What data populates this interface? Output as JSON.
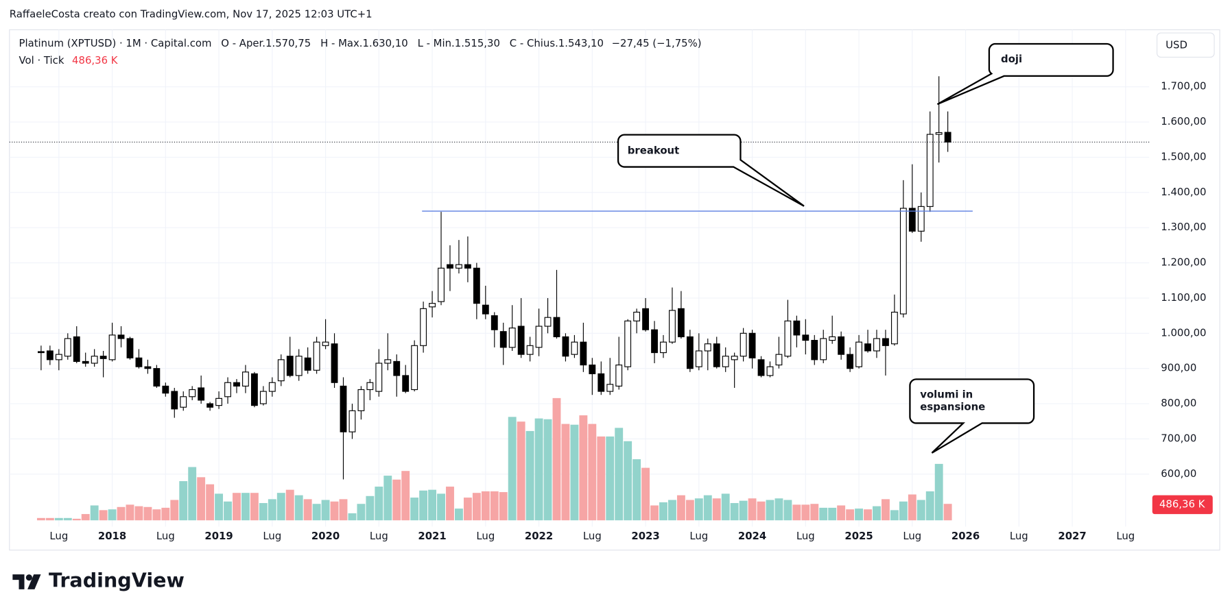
{
  "header": "RaffaeleCosta creato con TradingView.com, Nov 17, 2025 12:03 UTC+1",
  "legend": {
    "symbol": "Platinum (XPTUSD) · 1M · Capital.com",
    "open": "O - Aper.1.570,75",
    "high": "H - Max.1.630,10",
    "low": "L - Min.1.515,30",
    "close": "C - Chius.1.543,10",
    "change": "−27,45 (−1,75%)",
    "volume_name": "Vol · Tick",
    "volume_value": "486,36 K"
  },
  "currency": "USD",
  "footer": "TradingView",
  "chart_data": {
    "type": "candlestick",
    "x": [
      "2017-05",
      "2017-06",
      "2017-07",
      "2017-08",
      "2017-09",
      "2017-10",
      "2017-11",
      "2017-12",
      "2018-01",
      "2018-02",
      "2018-03",
      "2018-04",
      "2018-05",
      "2018-06",
      "2018-07",
      "2018-08",
      "2018-09",
      "2018-10",
      "2018-11",
      "2018-12",
      "2019-01",
      "2019-02",
      "2019-03",
      "2019-04",
      "2019-05",
      "2019-06",
      "2019-07",
      "2019-08",
      "2019-09",
      "2019-10",
      "2019-11",
      "2019-12",
      "2020-01",
      "2020-02",
      "2020-03",
      "2020-04",
      "2020-05",
      "2020-06",
      "2020-07",
      "2020-08",
      "2020-09",
      "2020-10",
      "2020-11",
      "2020-12",
      "2021-01",
      "2021-02",
      "2021-03",
      "2021-04",
      "2021-05",
      "2021-06",
      "2021-07",
      "2021-08",
      "2021-09",
      "2021-10",
      "2021-11",
      "2021-12",
      "2022-01",
      "2022-02",
      "2022-03",
      "2022-04",
      "2022-05",
      "2022-06",
      "2022-07",
      "2022-08",
      "2022-09",
      "2022-10",
      "2022-11",
      "2022-12",
      "2023-01",
      "2023-02",
      "2023-03",
      "2023-04",
      "2023-05",
      "2023-06",
      "2023-07",
      "2023-08",
      "2023-09",
      "2023-10",
      "2023-11",
      "2023-12",
      "2024-01",
      "2024-02",
      "2024-03",
      "2024-04",
      "2024-05",
      "2024-06",
      "2024-07",
      "2024-08",
      "2024-09",
      "2024-10",
      "2024-11",
      "2024-12",
      "2025-01",
      "2025-02",
      "2025-03",
      "2025-04",
      "2025-05",
      "2025-06",
      "2025-07",
      "2025-08",
      "2025-09",
      "2025-10",
      "2025-11"
    ],
    "open": [
      948,
      950,
      925,
      935,
      990,
      920,
      915,
      935,
      925,
      995,
      985,
      930,
      905,
      900,
      850,
      835,
      790,
      820,
      845,
      800,
      795,
      820,
      860,
      850,
      885,
      800,
      835,
      865,
      935,
      880,
      930,
      895,
      965,
      970,
      850,
      720,
      780,
      840,
      835,
      915,
      920,
      880,
      840,
      965,
      1075,
      1090,
      1195,
      1185,
      1195,
      1185,
      1080,
      1050,
      1005,
      960,
      1020,
      940,
      960,
      1020,
      1045,
      990,
      940,
      975,
      910,
      885,
      835,
      850,
      905,
      1035,
      1070,
      1010,
      945,
      975,
      1070,
      990,
      905,
      950,
      970,
      905,
      925,
      935,
      1000,
      925,
      880,
      910,
      935,
      1035,
      995,
      980,
      925,
      980,
      990,
      940,
      905,
      970,
      950,
      985,
      970,
      1055,
      1355,
      1290,
      1360,
      1565,
      1570.75
    ],
    "high": [
      965,
      965,
      955,
      1000,
      1020,
      945,
      955,
      950,
      1030,
      1020,
      990,
      955,
      925,
      910,
      860,
      845,
      835,
      850,
      880,
      805,
      835,
      875,
      870,
      910,
      890,
      850,
      875,
      940,
      990,
      955,
      960,
      990,
      1040,
      1000,
      875,
      800,
      850,
      870,
      955,
      1000,
      940,
      910,
      980,
      1090,
      1120,
      1345,
      1250,
      1265,
      1275,
      1200,
      1135,
      1060,
      1030,
      1080,
      1100,
      990,
      1070,
      1100,
      1180,
      1000,
      995,
      1030,
      930,
      920,
      930,
      990,
      1040,
      1070,
      1100,
      1035,
      995,
      1130,
      1120,
      1010,
      1000,
      985,
      990,
      960,
      945,
      1015,
      1010,
      935,
      920,
      990,
      1095,
      1050,
      1040,
      995,
      1010,
      1050,
      1005,
      960,
      995,
      1010,
      1010,
      1010,
      1110,
      1435,
      1480,
      1400,
      1630,
      1730,
      1630.1
    ],
    "low": [
      895,
      910,
      895,
      925,
      915,
      905,
      905,
      875,
      920,
      960,
      925,
      900,
      885,
      845,
      820,
      760,
      780,
      810,
      800,
      780,
      785,
      800,
      830,
      830,
      790,
      795,
      820,
      850,
      875,
      865,
      885,
      885,
      955,
      845,
      585,
      700,
      755,
      810,
      820,
      895,
      820,
      830,
      835,
      945,
      1045,
      1080,
      1120,
      1170,
      1145,
      1040,
      1040,
      960,
      910,
      950,
      930,
      920,
      935,
      1000,
      985,
      920,
      930,
      890,
      825,
      825,
      825,
      840,
      895,
      1000,
      1005,
      915,
      930,
      970,
      985,
      890,
      895,
      895,
      900,
      890,
      845,
      920,
      900,
      875,
      875,
      900,
      930,
      960,
      940,
      910,
      915,
      970,
      925,
      890,
      900,
      945,
      930,
      880,
      965,
      1045,
      1285,
      1260,
      1345,
      1485,
      1515.3
    ],
    "close": [
      945,
      925,
      940,
      985,
      920,
      915,
      935,
      928,
      995,
      985,
      930,
      905,
      900,
      850,
      830,
      785,
      820,
      840,
      810,
      790,
      815,
      860,
      850,
      890,
      795,
      835,
      860,
      925,
      880,
      935,
      895,
      975,
      975,
      860,
      720,
      780,
      840,
      860,
      915,
      925,
      880,
      835,
      965,
      1070,
      1085,
      1185,
      1185,
      1195,
      1185,
      1085,
      1055,
      1010,
      960,
      1015,
      940,
      965,
      1020,
      1045,
      990,
      935,
      975,
      910,
      885,
      835,
      855,
      910,
      1035,
      1060,
      1010,
      945,
      975,
      1065,
      990,
      900,
      950,
      970,
      905,
      935,
      935,
      1000,
      930,
      880,
      905,
      940,
      1035,
      995,
      980,
      925,
      985,
      990,
      940,
      900,
      975,
      950,
      985,
      965,
      1060,
      1355,
      1290,
      1360,
      1565,
      1570,
      1543.1
    ],
    "volume": [
      69,
      69,
      69,
      69,
      46,
      185,
      440,
      301,
      324,
      394,
      463,
      417,
      394,
      324,
      371,
      602,
      1158,
      1575,
      1274,
      1065,
      787,
      556,
      811,
      811,
      811,
      510,
      625,
      811,
      903,
      741,
      625,
      486,
      602,
      556,
      625,
      208,
      486,
      718,
      996,
      1320,
      1204,
      1459,
      672,
      880,
      903,
      787,
      996,
      347,
      672,
      811,
      857,
      857,
      834,
      3057,
      2918,
      2640,
      3011,
      2988,
      3613,
      2849,
      2826,
      3103,
      2849,
      2478,
      2478,
      2733,
      2339,
      1806,
      1552,
      440,
      533,
      602,
      741,
      602,
      648,
      741,
      648,
      787,
      510,
      579,
      648,
      556,
      602,
      648,
      602,
      463,
      463,
      486,
      371,
      371,
      440,
      324,
      347,
      324,
      417,
      625,
      301,
      556,
      764,
      602,
      857,
      1668,
      486.36
    ],
    "vlim": [
      0,
      4000
    ],
    "ylim": [
      451,
      1862
    ],
    "yticks": [
      {
        "value": 600,
        "label": "600,00"
      },
      {
        "value": 700,
        "label": "700,00"
      },
      {
        "value": 800,
        "label": "800,00"
      },
      {
        "value": 900,
        "label": "900,00"
      },
      {
        "value": 1000,
        "label": "1.000,00"
      },
      {
        "value": 1100,
        "label": "1.100,00"
      },
      {
        "value": 1200,
        "label": "1.200,00"
      },
      {
        "value": 1300,
        "label": "1.300,00"
      },
      {
        "value": 1400,
        "label": "1.400,00"
      },
      {
        "value": 1500,
        "label": "1.500,00"
      },
      {
        "value": 1600,
        "label": "1.600,00"
      },
      {
        "value": 1700,
        "label": "1.700,00"
      }
    ],
    "xticks": [
      {
        "value": "2017-07",
        "label": "Lug"
      },
      {
        "value": "2018-01",
        "label": "2018"
      },
      {
        "value": "2018-07",
        "label": "Lug"
      },
      {
        "value": "2019-01",
        "label": "2019"
      },
      {
        "value": "2019-07",
        "label": "Lug"
      },
      {
        "value": "2020-01",
        "label": "2020"
      },
      {
        "value": "2020-07",
        "label": "Lug"
      },
      {
        "value": "2021-01",
        "label": "2021"
      },
      {
        "value": "2021-07",
        "label": "Lug"
      },
      {
        "value": "2022-01",
        "label": "2022"
      },
      {
        "value": "2022-07",
        "label": "Lug"
      },
      {
        "value": "2023-01",
        "label": "2023"
      },
      {
        "value": "2023-07",
        "label": "Lug"
      },
      {
        "value": "2024-01",
        "label": "2024"
      },
      {
        "value": "2024-07",
        "label": "Lug"
      },
      {
        "value": "2025-01",
        "label": "2025"
      },
      {
        "value": "2025-07",
        "label": "Lug"
      },
      {
        "value": "2026-01",
        "label": "2026"
      },
      {
        "value": "2026-07",
        "label": "Lug"
      },
      {
        "value": "2027-01",
        "label": "2027"
      },
      {
        "value": "2027-07",
        "label": "Lug"
      }
    ],
    "grid": true,
    "up_color": "#ffffff",
    "down_color": "#000000",
    "volume_up_color": "#92d3cb",
    "volume_down_color": "#f6a5a5",
    "hline": 1347,
    "hline_color": "#5b7fe0",
    "annotations": {
      "breakout": "breakout",
      "doji": "doji",
      "volumes": [
        "volumi in",
        "espansione"
      ]
    }
  }
}
